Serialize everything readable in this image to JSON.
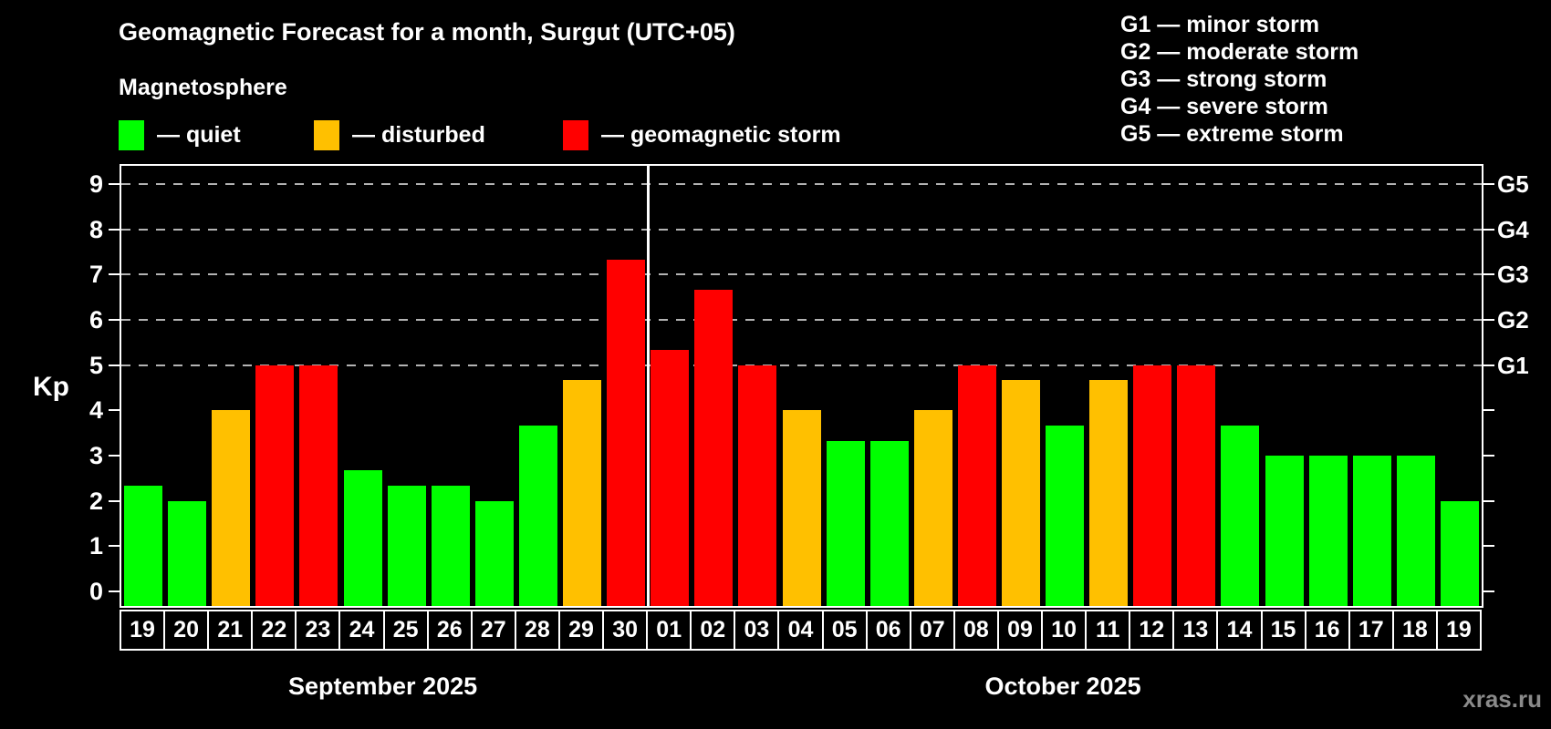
{
  "title": "Geomagnetic Forecast for a month, Surgut (UTC+05)",
  "subtitle": "Magnetosphere",
  "legend": {
    "items": [
      {
        "label": "— quiet",
        "state": "quiet",
        "color": "#00ff00"
      },
      {
        "label": "— disturbed",
        "state": "disturbed",
        "color": "#ffc000"
      },
      {
        "label": "— geomagnetic storm",
        "state": "storm",
        "color": "#ff0000"
      }
    ]
  },
  "g_legend": [
    "G1 — minor storm",
    "G2 — moderate storm",
    "G3 — strong storm",
    "G4 — severe storm",
    "G5 — extreme storm"
  ],
  "watermark": "xras.ru",
  "chart_data": {
    "type": "bar",
    "title": "Geomagnetic Forecast for a month, Surgut (UTC+05)",
    "ylabel": "Kp",
    "ylim": [
      0,
      9
    ],
    "y_ticks": [
      0,
      1,
      2,
      3,
      4,
      5,
      6,
      7,
      8,
      9
    ],
    "gridline_levels": [
      5,
      6,
      7,
      8,
      9
    ],
    "grid": "dashed",
    "right_axis_labels": [
      {
        "label": "G1",
        "kp": 5
      },
      {
        "label": "G2",
        "kp": 6
      },
      {
        "label": "G3",
        "kp": 7
      },
      {
        "label": "G4",
        "kp": 8
      },
      {
        "label": "G5",
        "kp": 9
      }
    ],
    "state_colors": {
      "quiet": "#00ff00",
      "disturbed": "#ffc000",
      "storm": "#ff0000"
    },
    "background_color": "#000000",
    "months": [
      {
        "label": "September 2025",
        "days": 12
      },
      {
        "label": "October 2025",
        "days": 19
      }
    ],
    "bars": [
      {
        "day": "19",
        "kp": 2.33,
        "state": "quiet"
      },
      {
        "day": "20",
        "kp": 2.0,
        "state": "quiet"
      },
      {
        "day": "21",
        "kp": 4.0,
        "state": "disturbed"
      },
      {
        "day": "22",
        "kp": 5.0,
        "state": "storm"
      },
      {
        "day": "23",
        "kp": 5.0,
        "state": "storm"
      },
      {
        "day": "24",
        "kp": 2.67,
        "state": "quiet"
      },
      {
        "day": "25",
        "kp": 2.33,
        "state": "quiet"
      },
      {
        "day": "26",
        "kp": 2.33,
        "state": "quiet"
      },
      {
        "day": "27",
        "kp": 2.0,
        "state": "quiet"
      },
      {
        "day": "28",
        "kp": 3.67,
        "state": "quiet"
      },
      {
        "day": "29",
        "kp": 4.67,
        "state": "disturbed"
      },
      {
        "day": "30",
        "kp": 7.33,
        "state": "storm"
      },
      {
        "day": "01",
        "kp": 5.33,
        "state": "storm"
      },
      {
        "day": "02",
        "kp": 6.67,
        "state": "storm"
      },
      {
        "day": "03",
        "kp": 5.0,
        "state": "storm"
      },
      {
        "day": "04",
        "kp": 4.0,
        "state": "disturbed"
      },
      {
        "day": "05",
        "kp": 3.33,
        "state": "quiet"
      },
      {
        "day": "06",
        "kp": 3.33,
        "state": "quiet"
      },
      {
        "day": "07",
        "kp": 4.0,
        "state": "disturbed"
      },
      {
        "day": "08",
        "kp": 5.0,
        "state": "storm"
      },
      {
        "day": "09",
        "kp": 4.67,
        "state": "disturbed"
      },
      {
        "day": "10",
        "kp": 3.67,
        "state": "quiet"
      },
      {
        "day": "11",
        "kp": 4.67,
        "state": "disturbed"
      },
      {
        "day": "12",
        "kp": 5.0,
        "state": "storm"
      },
      {
        "day": "13",
        "kp": 5.0,
        "state": "storm"
      },
      {
        "day": "14",
        "kp": 3.67,
        "state": "quiet"
      },
      {
        "day": "15",
        "kp": 3.0,
        "state": "quiet"
      },
      {
        "day": "16",
        "kp": 3.0,
        "state": "quiet"
      },
      {
        "day": "17",
        "kp": 3.0,
        "state": "quiet"
      },
      {
        "day": "18",
        "kp": 3.0,
        "state": "quiet"
      },
      {
        "day": "19",
        "kp": 2.0,
        "state": "quiet"
      }
    ]
  }
}
